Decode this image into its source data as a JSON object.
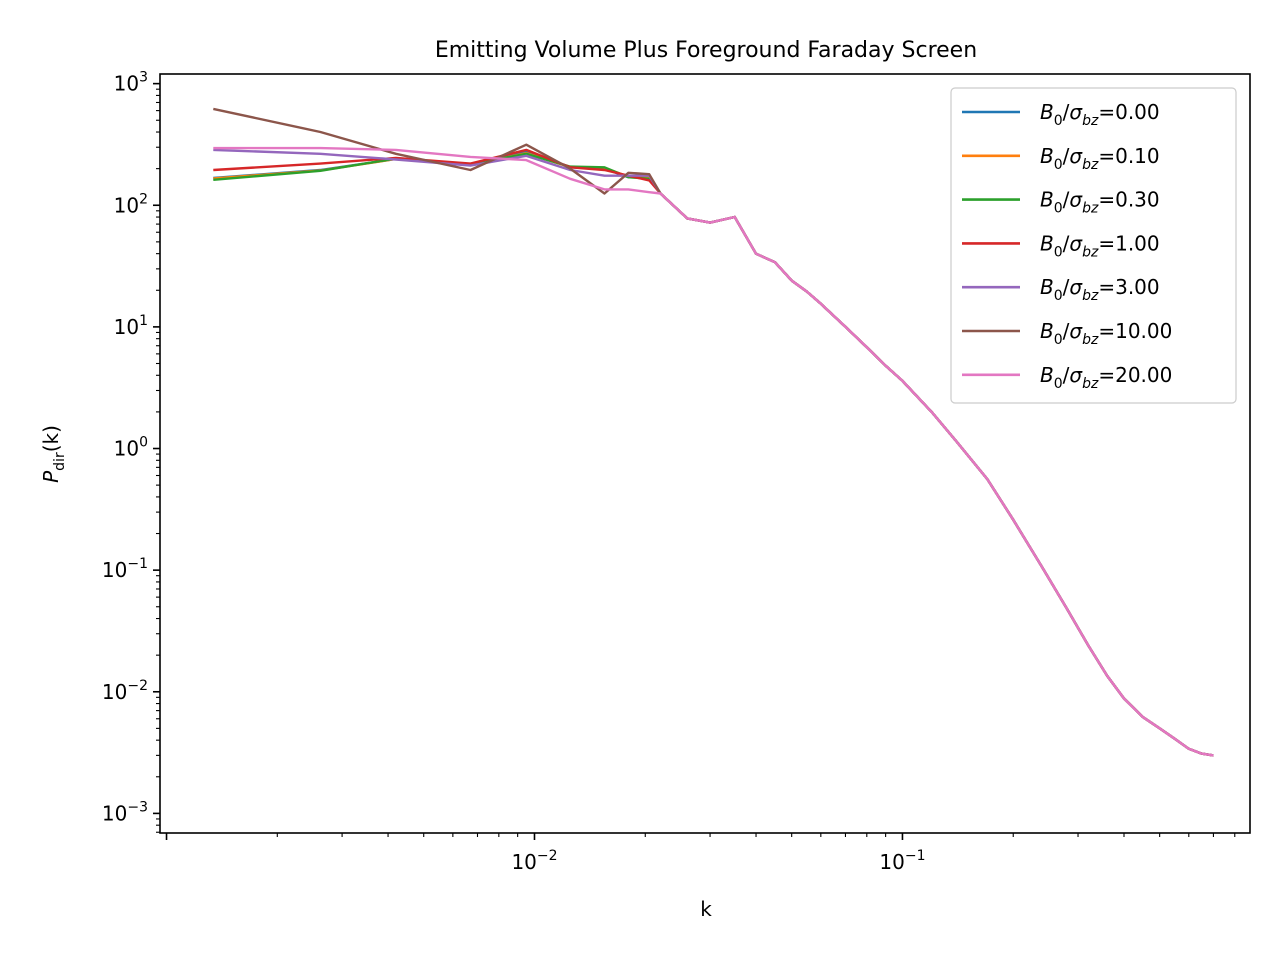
{
  "chart_data": {
    "type": "line",
    "title": "Emitting Volume Plus Foreground Faraday Screen",
    "xlabel": "k",
    "ylabel": {
      "base": "P",
      "sub": "dir",
      "suffix": "(k)"
    },
    "x_scale": "log",
    "y_scale": "log",
    "xlim": [
      0.00096,
      0.88
    ],
    "ylim": [
      0.00069,
      1200
    ],
    "x_ticks": [
      {
        "value": 0.01,
        "base": "10",
        "exp": "−2"
      },
      {
        "value": 0.1,
        "base": "10",
        "exp": "−1"
      }
    ],
    "y_ticks": [
      {
        "value": 0.001,
        "base": "10",
        "exp": "−3"
      },
      {
        "value": 0.01,
        "base": "10",
        "exp": "−2"
      },
      {
        "value": 0.1,
        "base": "10",
        "exp": "−1"
      },
      {
        "value": 1,
        "base": "10",
        "exp": "0"
      },
      {
        "value": 10,
        "base": "10",
        "exp": "1"
      },
      {
        "value": 100,
        "base": "10",
        "exp": "2"
      },
      {
        "value": 1000,
        "base": "10",
        "exp": "3"
      }
    ],
    "grid": false,
    "legend_position": "top-right",
    "shared_tail": {
      "x": [
        0.022,
        0.026,
        0.03,
        0.035,
        0.04,
        0.045,
        0.05,
        0.055,
        0.06,
        0.07,
        0.08,
        0.09,
        0.1,
        0.12,
        0.14,
        0.17,
        0.2,
        0.24,
        0.28,
        0.32,
        0.36,
        0.4,
        0.45,
        0.5,
        0.55,
        0.6,
        0.65,
        0.7
      ],
      "y": [
        125,
        78,
        72,
        80,
        40,
        34,
        24,
        19.5,
        15.5,
        10,
        6.8,
        4.8,
        3.6,
        2.0,
        1.15,
        0.56,
        0.26,
        0.105,
        0.048,
        0.024,
        0.0135,
        0.0088,
        0.0062,
        0.005,
        0.0041,
        0.0034,
        0.0031,
        0.003
      ]
    },
    "series": [
      {
        "legend": {
          "base": "B",
          "sub0": "0",
          "slash": "/",
          "sigma": "σ",
          "sub1": "bz",
          "value": "=0.00"
        },
        "color": "#1f77b4",
        "x": [
          0.00134,
          0.00262,
          0.0042,
          0.0067,
          0.0095,
          0.0125,
          0.0155,
          0.018,
          0.0205
        ],
        "y": [
          168,
          195,
          240,
          215,
          280,
          205,
          200,
          170,
          170
        ]
      },
      {
        "legend": {
          "base": "B",
          "sub0": "0",
          "slash": "/",
          "sigma": "σ",
          "sub1": "bz",
          "value": "=0.10"
        },
        "color": "#ff7f0e",
        "x": [
          0.00134,
          0.00262,
          0.0042,
          0.0067,
          0.0095,
          0.0125,
          0.0155,
          0.018,
          0.0205
        ],
        "y": [
          166,
          193,
          240,
          215,
          268,
          206,
          203,
          172,
          168
        ]
      },
      {
        "legend": {
          "base": "B",
          "sub0": "0",
          "slash": "/",
          "sigma": "σ",
          "sub1": "bz",
          "value": "=0.30"
        },
        "color": "#2ca02c",
        "x": [
          0.00134,
          0.00262,
          0.0042,
          0.0067,
          0.0095,
          0.0125,
          0.0155,
          0.018,
          0.0205
        ],
        "y": [
          162,
          192,
          242,
          218,
          265,
          208,
          205,
          170,
          165
        ]
      },
      {
        "legend": {
          "base": "B",
          "sub0": "0",
          "slash": "/",
          "sigma": "σ",
          "sub1": "bz",
          "value": "=1.00"
        },
        "color": "#d62728",
        "x": [
          0.00134,
          0.00262,
          0.0042,
          0.0067,
          0.0095,
          0.0125,
          0.0155,
          0.018,
          0.0205
        ],
        "y": [
          195,
          220,
          245,
          220,
          285,
          205,
          195,
          175,
          160
        ]
      },
      {
        "legend": {
          "base": "B",
          "sub0": "0",
          "slash": "/",
          "sigma": "σ",
          "sub1": "bz",
          "value": "=3.00"
        },
        "color": "#9467bd",
        "x": [
          0.00134,
          0.00262,
          0.0042,
          0.0067,
          0.0095,
          0.0125,
          0.0155,
          0.018,
          0.0205
        ],
        "y": [
          285,
          265,
          238,
          212,
          255,
          195,
          175,
          175,
          175
        ]
      },
      {
        "legend": {
          "base": "B",
          "sub0": "0",
          "slash": "/",
          "sigma": "σ",
          "sub1": "bz",
          "value": "=10.00"
        },
        "color": "#8c564b",
        "x": [
          0.00134,
          0.00262,
          0.0042,
          0.0067,
          0.0095,
          0.0125,
          0.0155,
          0.018,
          0.0205
        ],
        "y": [
          620,
          400,
          265,
          195,
          315,
          200,
          125,
          185,
          180
        ]
      },
      {
        "legend": {
          "base": "B",
          "sub0": "0",
          "slash": "/",
          "sigma": "σ",
          "sub1": "bz",
          "value": "=20.00"
        },
        "color": "#e377c2",
        "x": [
          0.00134,
          0.00262,
          0.0042,
          0.0067,
          0.0095,
          0.0125,
          0.0155,
          0.018,
          0.0205
        ],
        "y": [
          295,
          295,
          285,
          250,
          235,
          165,
          135,
          135,
          128
        ]
      }
    ]
  }
}
